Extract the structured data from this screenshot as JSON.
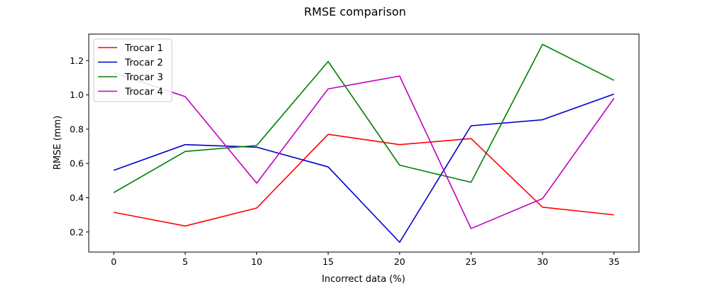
{
  "chart_data": {
    "type": "line",
    "title": "RMSE comparison",
    "xlabel": "Incorrect data (%)",
    "ylabel": "RMSE (mm)",
    "x": [
      0,
      5,
      10,
      15,
      20,
      25,
      30,
      35
    ],
    "xlim": [
      -1.75,
      36.75
    ],
    "ylim": [
      0.083,
      1.355
    ],
    "xticks": [
      0,
      5,
      10,
      15,
      20,
      25,
      30,
      35
    ],
    "yticks": [
      0.2,
      0.4,
      0.6,
      0.8,
      1.0,
      1.2
    ],
    "ytick_labels": [
      "0.2",
      "0.4",
      "0.6",
      "0.8",
      "1.0",
      "1.2"
    ],
    "grid": false,
    "legend_position": "top-left",
    "series": [
      {
        "name": "Trocar 1",
        "color": "#ff0000",
        "values": [
          0.315,
          0.235,
          0.34,
          0.77,
          0.71,
          0.745,
          0.345,
          0.3
        ]
      },
      {
        "name": "Trocar 2",
        "color": "#0000cc",
        "values": [
          0.56,
          0.71,
          0.695,
          0.58,
          0.14,
          0.82,
          0.855,
          1.005
        ]
      },
      {
        "name": "Trocar 3",
        "color": "#008000",
        "values": [
          0.43,
          0.67,
          0.705,
          1.195,
          0.59,
          0.49,
          1.295,
          1.085
        ]
      },
      {
        "name": "Trocar 4",
        "color": "#bf00bf",
        "values": [
          1.13,
          0.99,
          0.485,
          1.035,
          1.11,
          0.22,
          0.395,
          0.98
        ]
      }
    ]
  }
}
